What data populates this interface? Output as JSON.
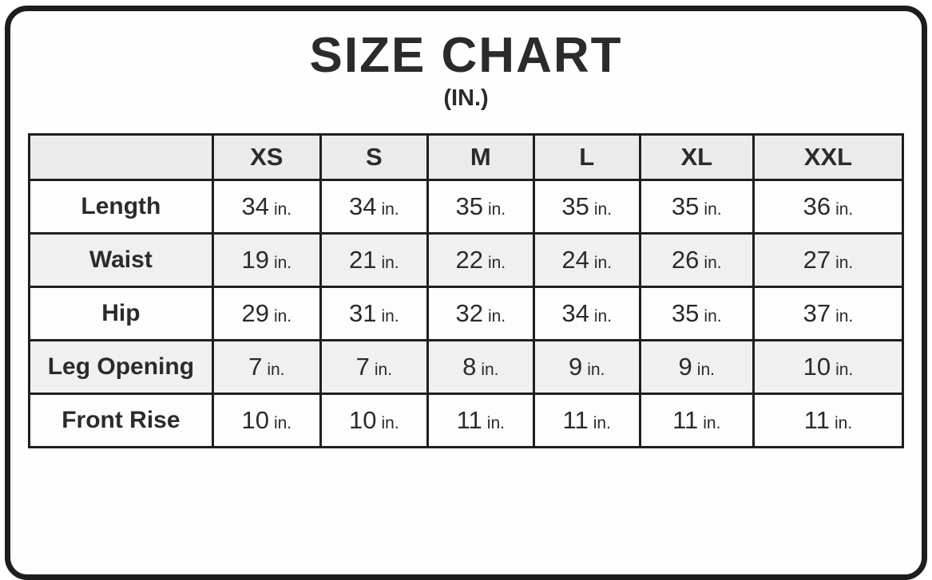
{
  "title": "SIZE CHART",
  "subtitle": "(IN.)",
  "chart_data": {
    "type": "table",
    "title": "SIZE CHART",
    "subtitle": "(IN.)",
    "unit_label": "in.",
    "columns": [
      "XS",
      "S",
      "M",
      "L",
      "XL",
      "XXL"
    ],
    "rows": [
      {
        "label": "Length",
        "values": [
          34,
          34,
          35,
          35,
          35,
          36
        ]
      },
      {
        "label": "Waist",
        "values": [
          19,
          21,
          22,
          24,
          26,
          27
        ]
      },
      {
        "label": "Hip",
        "values": [
          29,
          31,
          32,
          34,
          35,
          37
        ]
      },
      {
        "label": "Leg Opening",
        "values": [
          7,
          7,
          8,
          9,
          9,
          10
        ]
      },
      {
        "label": "Front Rise",
        "values": [
          10,
          10,
          11,
          11,
          11,
          11
        ]
      }
    ]
  },
  "colors": {
    "text": "#2b2b2b",
    "border": "#1f1f1f",
    "header_bg": "#ebebeb",
    "alt_row_bg": "#f0f0f0",
    "row_bg": "#fdfdfd",
    "card_border": "#1d1d1d"
  }
}
